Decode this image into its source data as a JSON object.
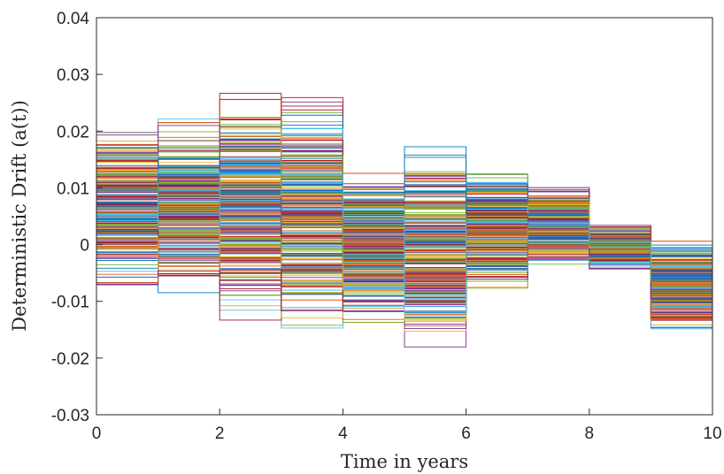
{
  "chart_data": {
    "type": "line",
    "title": "",
    "xlabel": "Time in years",
    "ylabel": "Deterministic Drift (a(t))",
    "xlim": [
      0,
      10
    ],
    "ylim": [
      -0.03,
      0.04
    ],
    "x_ticks": [
      0,
      2,
      4,
      6,
      8,
      10
    ],
    "x_tick_labels": [
      "0",
      "2",
      "4",
      "6",
      "8",
      "10"
    ],
    "y_ticks": [
      -0.03,
      -0.02,
      -0.01,
      0,
      0.01,
      0.02,
      0.03,
      0.04
    ],
    "y_tick_labels": [
      "-0.03",
      "-0.02",
      "-0.01",
      "0",
      "0.01",
      "0.02",
      "0.03",
      "0.04"
    ],
    "grid": false,
    "legend": "none",
    "step_style": "piecewise constant per year",
    "intervals": [
      {
        "t_start": 0,
        "t_end": 1,
        "min": -0.0105,
        "max": 0.0233
      },
      {
        "t_start": 1,
        "t_end": 2,
        "min": -0.01,
        "max": 0.0243
      },
      {
        "t_start": 2,
        "t_end": 3,
        "min": -0.018,
        "max": 0.0303
      },
      {
        "t_start": 3,
        "t_end": 4,
        "min": -0.0175,
        "max": 0.03
      },
      {
        "t_start": 4,
        "t_end": 5,
        "min": -0.0165,
        "max": 0.0168
      },
      {
        "t_start": 5,
        "t_end": 6,
        "min": -0.021,
        "max": 0.02
      },
      {
        "t_start": 6,
        "t_end": 7,
        "min": -0.0105,
        "max": 0.0147
      },
      {
        "t_start": 7,
        "t_end": 8,
        "min": -0.0045,
        "max": 0.0117
      },
      {
        "t_start": 8,
        "t_end": 9,
        "min": -0.0052,
        "max": 0.004
      },
      {
        "t_start": 9,
        "t_end": 10,
        "min": -0.0162,
        "max": 0.0028
      }
    ],
    "series_count": 300,
    "series_colors": [
      "#0072bd",
      "#d95319",
      "#edb120",
      "#7e2f8e",
      "#77ac30",
      "#4dbeee",
      "#a2142f"
    ]
  }
}
